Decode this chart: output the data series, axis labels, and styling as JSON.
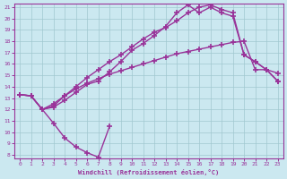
{
  "xlabel": "Windchill (Refroidissement éolien,°C)",
  "bg_color": "#cbe8f0",
  "grid_color": "#a0c8d0",
  "line_color": "#993399",
  "ylim": [
    8,
    21
  ],
  "xlim": [
    -0.5,
    23.5
  ],
  "yticks": [
    8,
    9,
    10,
    11,
    12,
    13,
    14,
    15,
    16,
    17,
    18,
    19,
    20,
    21
  ],
  "xticks": [
    0,
    1,
    2,
    3,
    4,
    5,
    6,
    7,
    8,
    9,
    10,
    11,
    12,
    13,
    14,
    15,
    16,
    17,
    18,
    19,
    20,
    21,
    22,
    23
  ],
  "line_dip_x": [
    0,
    1,
    2,
    3,
    4,
    5,
    6,
    7,
    8
  ],
  "line_dip_y": [
    13.3,
    13.2,
    12.0,
    10.8,
    9.5,
    8.7,
    8.2,
    7.8,
    10.5
  ],
  "line_A_x": [
    0,
    1,
    2,
    3,
    4,
    5,
    6,
    7,
    8,
    9,
    10,
    11,
    12,
    13,
    14,
    15,
    16,
    17,
    18,
    19,
    20,
    21,
    22,
    23
  ],
  "line_A_y": [
    13.3,
    13.2,
    12.0,
    12.3,
    13.2,
    14.0,
    14.8,
    15.5,
    16.2,
    16.8,
    17.5,
    18.2,
    18.8,
    19.2,
    19.8,
    20.5,
    21.0,
    21.2,
    20.8,
    20.5,
    16.8,
    16.2,
    15.5,
    14.5
  ],
  "line_B_x": [
    0,
    1,
    2,
    3,
    4,
    5,
    6,
    7,
    8,
    9,
    10,
    11,
    12,
    13,
    14,
    15,
    16,
    17,
    18,
    19,
    20,
    21,
    22,
    23
  ],
  "line_B_y": [
    13.3,
    13.2,
    12.0,
    12.2,
    12.8,
    13.5,
    14.2,
    14.5,
    15.3,
    16.2,
    17.2,
    17.8,
    18.5,
    19.3,
    20.5,
    21.2,
    20.5,
    21.0,
    20.5,
    20.2,
    16.8,
    16.2,
    15.5,
    14.5
  ],
  "line_C_x": [
    0,
    1,
    2,
    3,
    4,
    5,
    6,
    7,
    8,
    9,
    10,
    11,
    12,
    13,
    14,
    15,
    16,
    17,
    18,
    19,
    20,
    21,
    22,
    23
  ],
  "line_C_y": [
    13.3,
    13.2,
    12.0,
    12.5,
    13.2,
    13.8,
    14.3,
    14.7,
    15.1,
    15.4,
    15.7,
    16.0,
    16.3,
    16.6,
    16.9,
    17.1,
    17.3,
    17.5,
    17.7,
    17.9,
    18.0,
    15.5,
    15.5,
    15.2
  ]
}
